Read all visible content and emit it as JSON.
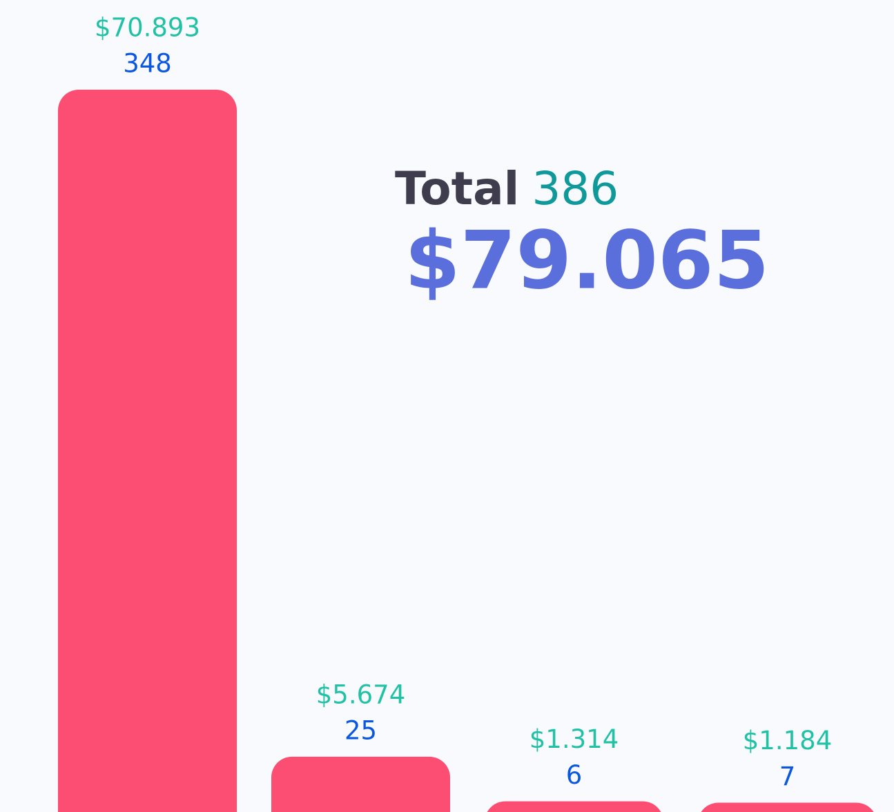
{
  "chart_data": {
    "type": "bar",
    "values": [
      70893,
      5674,
      1314,
      1184
    ],
    "value_labels": [
      "$70.893",
      "$5.674",
      "$1.314",
      "$1.184"
    ],
    "counts": [
      348,
      25,
      6,
      7
    ],
    "color": "#fb4e72",
    "value_label_color": "#21c1a5",
    "count_color": "#0b57e0",
    "ylim": [
      0,
      80000
    ],
    "total_label": "Total",
    "total_count": 386,
    "total_amount": 79065,
    "total_amount_label": "$79.065"
  }
}
